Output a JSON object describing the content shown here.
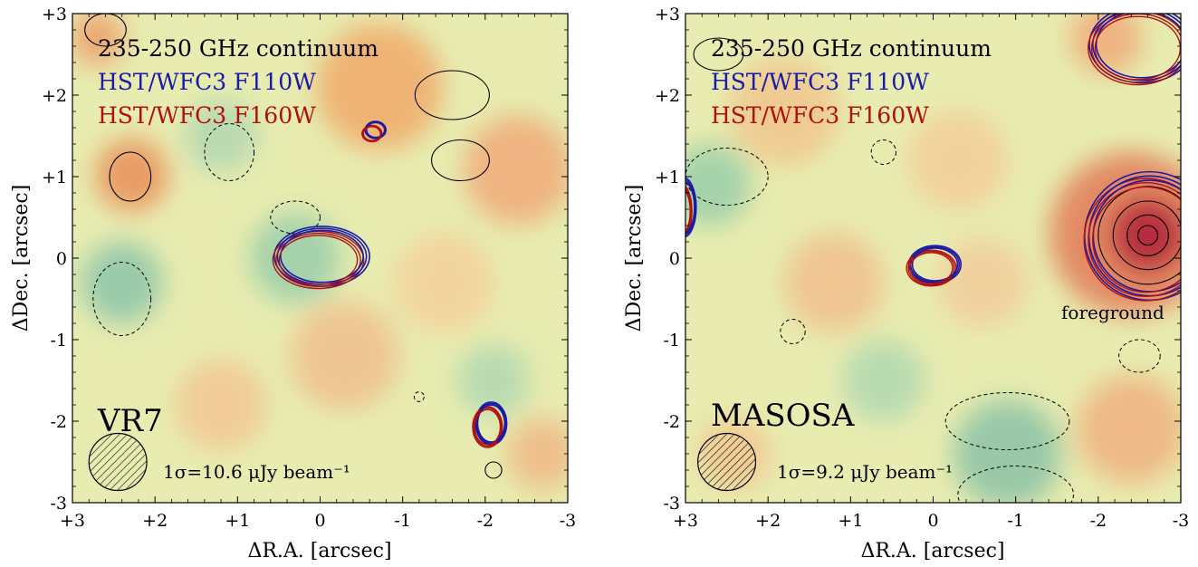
{
  "chart_data": [
    {
      "type": "contour-map",
      "source_label": "VR7",
      "legend": [
        {
          "text": "235-250 GHz continuum",
          "color": "#000000"
        },
        {
          "text": "HST/WFC3 F110W",
          "color": "#1a1aa8"
        },
        {
          "text": "HST/WFC3 F160W",
          "color": "#b01010"
        }
      ],
      "noise_label": "1σ=10.6 μJy beam⁻¹",
      "xlabel": "ΔR.A. [arcsec]",
      "ylabel": "ΔDec. [arcsec]",
      "xlim": [
        3,
        -3
      ],
      "ylim": [
        -3,
        3
      ],
      "xticks": [
        "+3",
        "+2",
        "+1",
        "0",
        "-1",
        "-2",
        "-3"
      ],
      "yticks": [
        "+3",
        "+2",
        "+1",
        "0",
        "-1",
        "-2",
        "-3"
      ],
      "hst_sources": [
        {
          "x": 0.0,
          "y": 0.0,
          "rx": 0.55,
          "ry": 0.35
        },
        {
          "x": -0.65,
          "y": 1.55,
          "rx": 0.12,
          "ry": 0.1
        },
        {
          "x": -2.05,
          "y": -2.05,
          "rx": 0.18,
          "ry": 0.25
        }
      ],
      "dust_positive": [
        {
          "x": -1.6,
          "y": 2.0,
          "rx": 0.45,
          "ry": 0.3
        },
        {
          "x": -1.7,
          "y": 1.2,
          "rx": 0.35,
          "ry": 0.25
        },
        {
          "x": 2.3,
          "y": 1.0,
          "rx": 0.25,
          "ry": 0.3
        },
        {
          "x": 2.6,
          "y": 2.8,
          "rx": 0.25,
          "ry": 0.2
        },
        {
          "x": -2.1,
          "y": -2.6,
          "rx": 0.1,
          "ry": 0.1
        }
      ],
      "dust_negative": [
        {
          "x": 2.4,
          "y": -0.5,
          "rx": 0.35,
          "ry": 0.45
        },
        {
          "x": 1.1,
          "y": 1.3,
          "rx": 0.3,
          "ry": 0.35
        },
        {
          "x": 0.3,
          "y": 0.5,
          "rx": 0.3,
          "ry": 0.2
        },
        {
          "x": -1.2,
          "y": -1.7,
          "rx": 0.06,
          "ry": 0.06
        }
      ],
      "beam": {
        "x": 2.45,
        "y": -2.5,
        "major": 0.35,
        "minor": 0.35
      }
    },
    {
      "type": "contour-map",
      "source_label": "MASOSA",
      "legend": [
        {
          "text": "235-250 GHz continuum",
          "color": "#000000"
        },
        {
          "text": "HST/WFC3 F110W",
          "color": "#1a1aa8"
        },
        {
          "text": "HST/WFC3 F160W",
          "color": "#b01010"
        }
      ],
      "noise_label": "1σ=9.2 μJy beam⁻¹",
      "annotation": "foreground",
      "xlabel": "ΔR.A. [arcsec]",
      "ylabel": "ΔDec. [arcsec]",
      "xlim": [
        3,
        -3
      ],
      "ylim": [
        -3,
        3
      ],
      "xticks": [
        "+3",
        "+2",
        "+1",
        "0",
        "-1",
        "-2",
        "-3"
      ],
      "yticks": [
        "+3",
        "+2",
        "+1",
        "0",
        "-1",
        "-2",
        "-3"
      ],
      "hst_sources": [
        {
          "x": 0.0,
          "y": -0.1,
          "rx": 0.3,
          "ry": 0.22
        },
        {
          "x": -2.6,
          "y": 0.25,
          "rx": 0.75,
          "ry": 0.75
        },
        {
          "x": -2.5,
          "y": 2.6,
          "rx": 0.6,
          "ry": 0.45
        },
        {
          "x": 3.05,
          "y": 0.6,
          "rx": 0.15,
          "ry": 0.35
        }
      ],
      "dust_positive": [
        {
          "x": -2.6,
          "y": 0.28,
          "rx": 0.6,
          "ry": 0.6
        },
        {
          "x": -2.6,
          "y": 0.28,
          "rx": 0.42,
          "ry": 0.42
        },
        {
          "x": -2.6,
          "y": 0.28,
          "rx": 0.25,
          "ry": 0.25
        },
        {
          "x": -2.6,
          "y": 0.28,
          "rx": 0.12,
          "ry": 0.12
        },
        {
          "x": 2.6,
          "y": 2.5,
          "rx": 0.3,
          "ry": 0.2
        }
      ],
      "dust_negative": [
        {
          "x": 2.5,
          "y": 1.0,
          "rx": 0.5,
          "ry": 0.35
        },
        {
          "x": 1.7,
          "y": -0.9,
          "rx": 0.15,
          "ry": 0.15
        },
        {
          "x": -0.9,
          "y": -2.0,
          "rx": 0.75,
          "ry": 0.35
        },
        {
          "x": -1.0,
          "y": -2.9,
          "rx": 0.7,
          "ry": 0.35
        },
        {
          "x": -2.5,
          "y": -1.2,
          "rx": 0.25,
          "ry": 0.2
        },
        {
          "x": 0.6,
          "y": 1.3,
          "rx": 0.15,
          "ry": 0.15
        }
      ],
      "beam": {
        "x": 2.5,
        "y": -2.5,
        "major": 0.35,
        "minor": 0.35
      }
    }
  ]
}
